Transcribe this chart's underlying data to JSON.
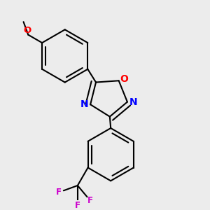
{
  "background_color": "#ececec",
  "bond_color": "#000000",
  "atom_colors": {
    "O_ring": "#ff0000",
    "N": "#0000ff",
    "O_methoxy": "#ff0000",
    "F": "#cc00cc",
    "C": "#000000"
  },
  "line_width": 1.5,
  "font_size": 8.5,
  "ring_r": 0.115,
  "oxad_r": 0.085
}
